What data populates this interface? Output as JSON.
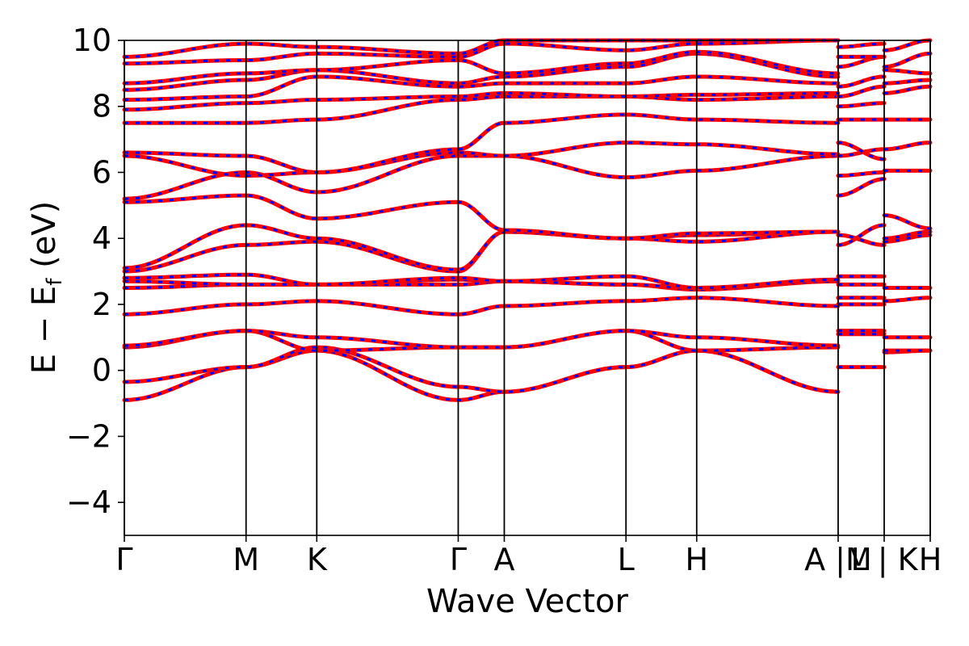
{
  "chart_data": {
    "type": "line",
    "title": "",
    "xlabel": "Wave Vector",
    "ylabel_main": "E − E",
    "ylabel_sub": "f",
    "ylabel_unit": " (eV)",
    "ylim": [
      -5,
      10
    ],
    "yticks": [
      -4,
      -2,
      0,
      2,
      4,
      6,
      8,
      10
    ],
    "ytick_labels": [
      "−4",
      "−2",
      "0",
      "2",
      "4",
      "6",
      "8",
      "10"
    ],
    "xlim": [
      0,
      24.5
    ],
    "high_symmetry_points": [
      {
        "label": "Γ",
        "x": 0
      },
      {
        "label": "M",
        "x": 3.7
      },
      {
        "label": "K",
        "x": 5.85
      },
      {
        "label": "Γ",
        "x": 10.15
      },
      {
        "label": "A",
        "x": 11.55
      },
      {
        "label": "L",
        "x": 15.25
      },
      {
        "label": "H",
        "x": 17.4
      },
      {
        "label": "A |M",
        "x": 21.7
      },
      {
        "label": "L | K",
        "x": 23.1
      },
      {
        "label": "H",
        "x": 24.5
      }
    ],
    "series_colors": {
      "spin_up": "#ff0000",
      "spin_down": "#0000ff"
    },
    "segments": [
      {
        "x": [
          0,
          3.7,
          5.85,
          10.15,
          11.55,
          15.25,
          17.4,
          21.7
        ],
        "bands": [
          [
            -0.9,
            0.1,
            0.6,
            -0.9,
            -0.65,
            0.1,
            0.6,
            -0.65
          ],
          [
            -0.35,
            0.1,
            0.7,
            -0.5,
            -0.65,
            0.1,
            0.6,
            -0.65
          ],
          [
            0.7,
            1.2,
            0.6,
            0.7,
            0.7,
            1.2,
            0.6,
            0.7
          ],
          [
            0.75,
            1.2,
            1.0,
            0.7,
            0.7,
            1.2,
            1.0,
            0.75
          ],
          [
            1.7,
            2.0,
            2.1,
            1.7,
            1.95,
            2.1,
            2.2,
            1.95
          ],
          [
            2.5,
            2.6,
            2.6,
            2.6,
            2.7,
            2.6,
            2.45,
            2.7
          ],
          [
            2.7,
            2.6,
            2.6,
            2.75,
            2.7,
            2.6,
            2.5,
            2.7
          ],
          [
            2.8,
            2.9,
            2.6,
            2.8,
            2.7,
            2.85,
            2.5,
            2.75
          ],
          [
            3.0,
            3.8,
            3.9,
            3.0,
            4.2,
            4.0,
            3.9,
            4.2
          ],
          [
            3.1,
            4.4,
            4.0,
            3.05,
            4.2,
            4.0,
            4.1,
            4.2
          ],
          [
            5.1,
            5.3,
            4.6,
            5.1,
            4.25,
            4.0,
            4.15,
            4.2
          ],
          [
            5.2,
            6.0,
            5.4,
            6.5,
            6.5,
            5.85,
            6.05,
            6.5
          ],
          [
            6.5,
            5.9,
            6.0,
            6.6,
            6.5,
            6.9,
            6.85,
            6.55
          ],
          [
            6.6,
            6.5,
            6.0,
            6.7,
            7.5,
            7.75,
            7.6,
            7.5
          ],
          [
            7.5,
            7.5,
            7.6,
            8.2,
            8.3,
            8.3,
            8.2,
            8.3
          ],
          [
            7.9,
            8.1,
            8.2,
            8.3,
            8.4,
            8.3,
            8.35,
            8.4
          ],
          [
            8.2,
            8.3,
            8.9,
            8.6,
            8.7,
            8.7,
            8.9,
            8.7
          ],
          [
            8.5,
            8.8,
            9.1,
            8.7,
            8.9,
            9.2,
            9.6,
            8.9
          ],
          [
            8.7,
            9.0,
            9.1,
            9.4,
            9.0,
            9.3,
            9.65,
            9.0
          ],
          [
            9.3,
            9.4,
            9.6,
            9.5,
            9.9,
            9.7,
            9.9,
            10.0
          ],
          [
            9.5,
            9.9,
            9.8,
            9.6,
            10.0,
            10.0,
            10.0,
            10.0
          ]
        ]
      },
      {
        "x": [
          21.7,
          23.1
        ],
        "bands": [
          [
            0.1,
            0.1
          ],
          [
            1.1,
            1.1
          ],
          [
            1.2,
            1.2
          ],
          [
            2.0,
            2.0
          ],
          [
            2.2,
            2.2
          ],
          [
            2.6,
            2.6
          ],
          [
            2.85,
            2.85
          ],
          [
            3.8,
            4.4
          ],
          [
            4.1,
            3.8
          ],
          [
            5.3,
            5.8
          ],
          [
            5.9,
            6.0
          ],
          [
            6.5,
            6.7
          ],
          [
            6.9,
            6.4
          ],
          [
            7.6,
            7.6
          ],
          [
            8.0,
            8.1
          ],
          [
            8.3,
            8.6
          ],
          [
            8.6,
            8.9
          ],
          [
            9.2,
            9.5
          ],
          [
            9.5,
            9.5
          ],
          [
            9.8,
            9.9
          ]
        ]
      },
      {
        "x": [
          23.1,
          24.5
        ],
        "bands": [
          [
            0.55,
            0.6
          ],
          [
            0.6,
            0.6
          ],
          [
            1.0,
            1.0
          ],
          [
            2.1,
            2.2
          ],
          [
            2.5,
            2.5
          ],
          [
            3.9,
            4.1
          ],
          [
            4.0,
            4.2
          ],
          [
            4.7,
            4.3
          ],
          [
            6.05,
            6.05
          ],
          [
            6.7,
            6.9
          ],
          [
            7.6,
            7.6
          ],
          [
            8.4,
            8.6
          ],
          [
            8.7,
            8.8
          ],
          [
            9.1,
            9.0
          ],
          [
            9.2,
            9.6
          ],
          [
            9.7,
            10.0
          ]
        ]
      }
    ]
  }
}
